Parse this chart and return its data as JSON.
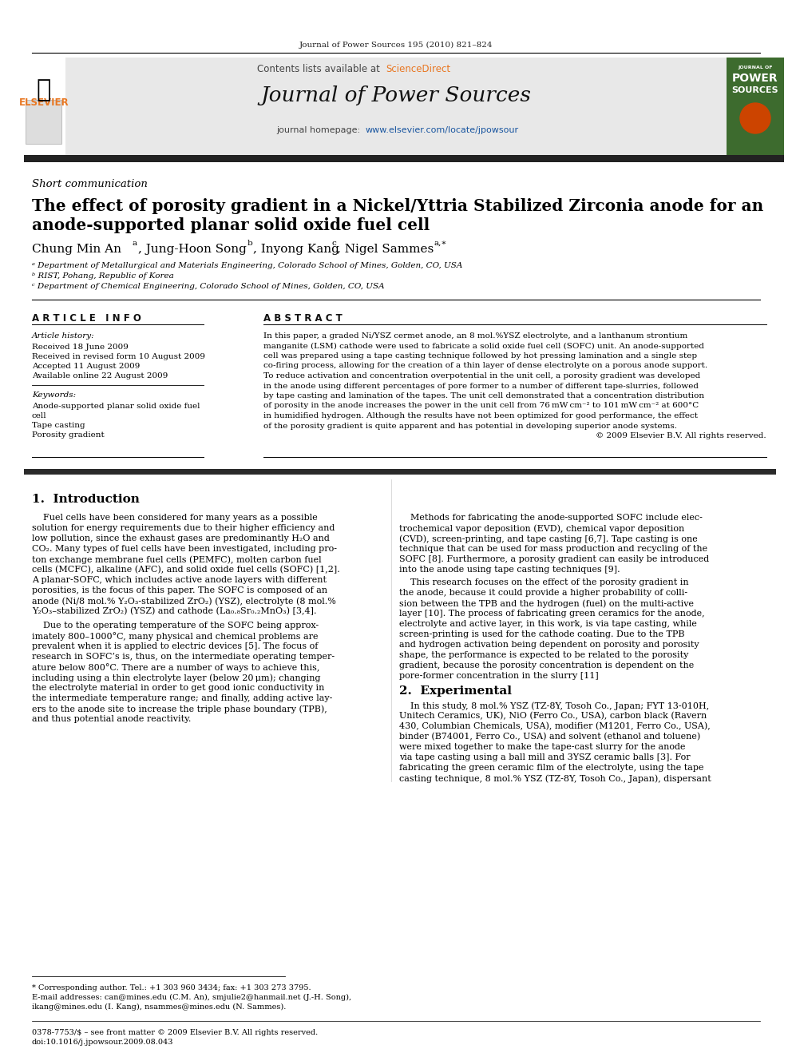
{
  "journal_header": "Journal of Power Sources 195 (2010) 821–824",
  "contents_text": "Contents lists available at ScienceDirect",
  "journal_name": "Journal of Power Sources",
  "journal_homepage": "journal homepage: www.elsevier.com/locate/jpowsour",
  "section_label": "Short communication",
  "article_info_header": "ARTICLE INFO",
  "abstract_header": "ABSTRACT",
  "article_history_label": "Article history:",
  "received": "Received 18 June 2009",
  "received_revised": "Received in revised form 10 August 2009",
  "accepted": "Accepted 11 August 2009",
  "available": "Available online 22 August 2009",
  "keywords_label": "Keywords:",
  "keyword1": "Anode-supported planar solid oxide fuel",
  "keyword1b": "cell",
  "keyword2": "Tape casting",
  "keyword3": "Porosity gradient",
  "affil_a": "ᵃ Department of Metallurgical and Materials Engineering, Colorado School of Mines, Golden, CO, USA",
  "affil_b": "ᵇ RIST, Pohang, Republic of Korea",
  "affil_c": "ᶜ Department of Chemical Engineering, Colorado School of Mines, Golden, CO, USA",
  "footnote_star": "* Corresponding author. Tel.: +1 303 960 3434; fax: +1 303 273 3795.",
  "footnote_email": "E-mail addresses: can@mines.edu (C.M. An), smjulie2@hanmail.net (J.-H. Song),",
  "footnote_email2": "ikang@mines.edu (I. Kang), nsammes@mines.edu (N. Sammes).",
  "footer_left": "0378-7753/$ – see front matter © 2009 Elsevier B.V. All rights reserved.",
  "footer_doi": "doi:10.1016/j.jpowsour.2009.08.043",
  "bg_color": "#ffffff",
  "header_bg": "#e8e8e8",
  "dark_bar_color": "#1a1a1a",
  "science_direct_color": "#e87722",
  "link_color": "#1a56a0"
}
